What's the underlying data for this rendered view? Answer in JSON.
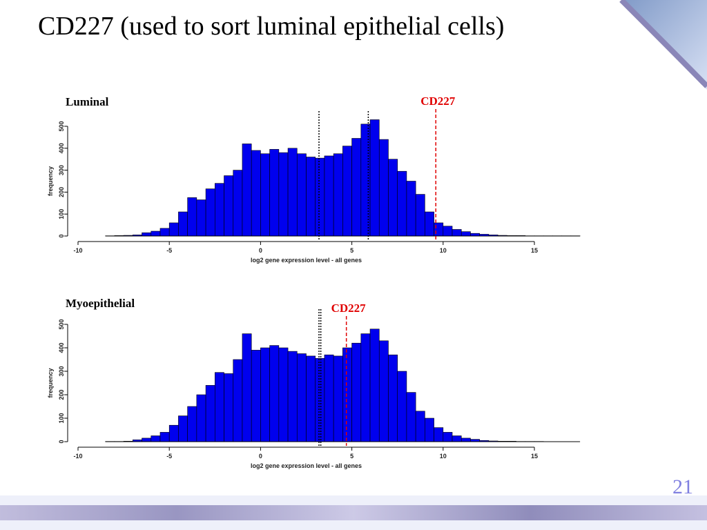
{
  "slide": {
    "title": "CD227 (used to sort luminal epithelial cells)",
    "page_number": "21"
  },
  "chart_data": [
    {
      "type": "histogram",
      "title": "Luminal",
      "x_label": "log2 gene expression level - all genes",
      "y_label": "frequency",
      "color": "#0000ee",
      "bins": [
        -8.5,
        -8,
        -7.5,
        -7,
        -6.5,
        -6,
        -5.5,
        -5,
        -4.5,
        -4,
        -3.5,
        -3,
        -2.5,
        -2,
        -1.5,
        -1,
        -0.5,
        0,
        0.5,
        1,
        1.5,
        2,
        2.5,
        3,
        3.5,
        4,
        4.5,
        5,
        5.5,
        6,
        6.5,
        7,
        7.5,
        8,
        8.5,
        9,
        9.5,
        10,
        10.5,
        11,
        11.5,
        12,
        12.5,
        13,
        13.5,
        14,
        14.5,
        15,
        15.5,
        16,
        16.5,
        17,
        17.5
      ],
      "values": [
        1,
        2,
        3,
        5,
        15,
        22,
        35,
        60,
        110,
        175,
        165,
        215,
        240,
        275,
        300,
        420,
        390,
        375,
        395,
        380,
        400,
        375,
        360,
        355,
        365,
        375,
        410,
        445,
        510,
        530,
        440,
        350,
        295,
        250,
        190,
        110,
        60,
        45,
        30,
        20,
        12,
        8,
        5,
        3,
        2,
        2,
        1,
        1,
        1,
        1,
        1,
        1
      ],
      "xlim": [
        -10,
        15
      ],
      "ylim": [
        0,
        500
      ],
      "xticks": [
        -10,
        -5,
        0,
        5,
        10,
        15
      ],
      "yticks": [
        0,
        100,
        200,
        300,
        400,
        500
      ],
      "markers": [
        {
          "x": 3.2,
          "color": "#000000"
        },
        {
          "x": 5.9,
          "color": "#000000"
        },
        {
          "x": 9.6,
          "color": "#e00000",
          "label": "CD227"
        }
      ]
    },
    {
      "type": "histogram",
      "title": "Myoepithelial",
      "x_label": "log2 gene expression level - all genes",
      "y_label": "frequency",
      "color": "#0000ee",
      "bins": [
        -8.5,
        -8,
        -7.5,
        -7,
        -6.5,
        -6,
        -5.5,
        -5,
        -4.5,
        -4,
        -3.5,
        -3,
        -2.5,
        -2,
        -1.5,
        -1,
        -0.5,
        0,
        0.5,
        1,
        1.5,
        2,
        2.5,
        3,
        3.5,
        4,
        4.5,
        5,
        5.5,
        6,
        6.5,
        7,
        7.5,
        8,
        8.5,
        9,
        9.5,
        10,
        10.5,
        11,
        11.5,
        12,
        12.5,
        13,
        13.5,
        14,
        14.5,
        15,
        15.5,
        16,
        16.5,
        17,
        17.5
      ],
      "values": [
        1,
        1,
        2,
        8,
        15,
        25,
        40,
        70,
        110,
        150,
        200,
        240,
        295,
        290,
        350,
        460,
        390,
        400,
        410,
        400,
        385,
        375,
        365,
        355,
        370,
        365,
        400,
        420,
        460,
        480,
        430,
        370,
        300,
        210,
        130,
        100,
        60,
        40,
        25,
        15,
        10,
        5,
        3,
        2,
        2,
        1,
        1,
        1,
        0,
        0,
        0,
        0
      ],
      "xlim": [
        -10,
        15
      ],
      "ylim": [
        0,
        500
      ],
      "xticks": [
        -10,
        -5,
        0,
        5,
        10,
        15
      ],
      "yticks": [
        0,
        100,
        200,
        300,
        400,
        500
      ],
      "markers": [
        {
          "x": 3.2,
          "color": "#000000"
        },
        {
          "x": 3.3,
          "color": "#000000"
        },
        {
          "x": 4.7,
          "color": "#e00000",
          "label": "CD227"
        }
      ]
    }
  ]
}
